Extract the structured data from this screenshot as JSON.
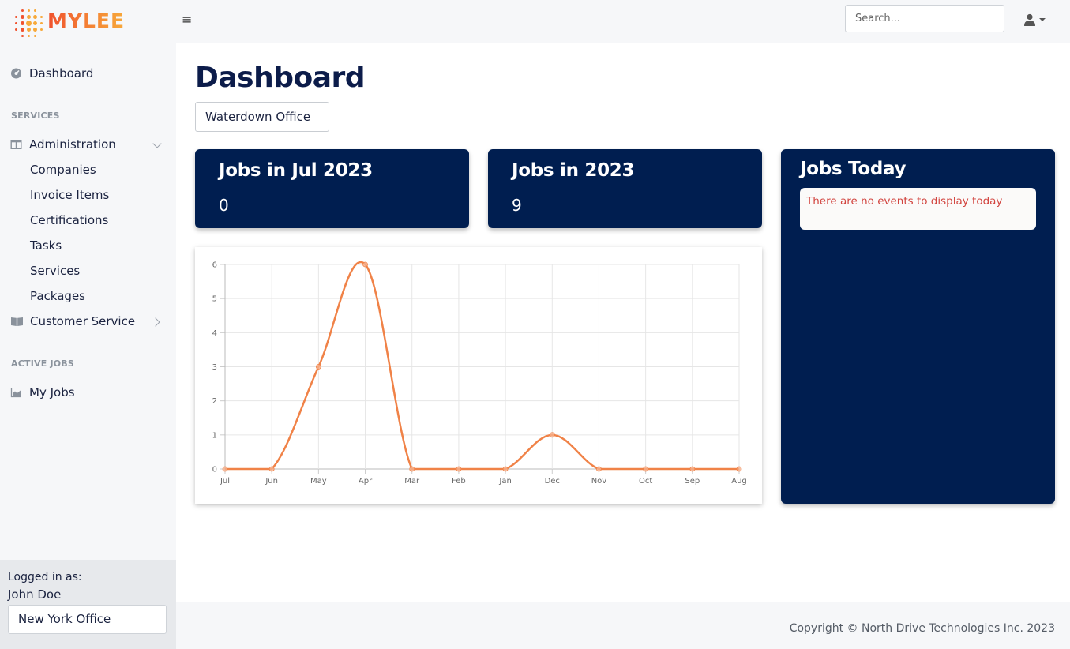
{
  "brand": {
    "name": "MYLEE",
    "colors": {
      "primary": "#f0522e",
      "secondary": "#f7a93a"
    }
  },
  "header": {
    "menu_icon": "≡",
    "search": {
      "placeholder": "Search...",
      "value": ""
    },
    "user_icon": "user-icon"
  },
  "sidebar": {
    "dashboard": "Dashboard",
    "sections": {
      "services": "SERVICES",
      "active_jobs": "ACTIVE JOBS"
    },
    "administration": {
      "label": "Administration",
      "items": [
        "Companies",
        "Invoice Items",
        "Certifications",
        "Tasks",
        "Services",
        "Packages"
      ]
    },
    "customer_service": "Customer Service",
    "my_jobs": "My Jobs",
    "footer": {
      "logged_in_label": "Logged in as:",
      "user": "John Doe",
      "office": "New York Office"
    }
  },
  "main": {
    "title": "Dashboard",
    "office_button": "Waterdown Office",
    "cards": [
      {
        "title": "Jobs in Jul 2023",
        "value": "0"
      },
      {
        "title": "Jobs in 2023",
        "value": "9"
      }
    ],
    "today": {
      "title": "Jobs Today",
      "message": "There are no events to display today"
    },
    "card_color": "#001e50"
  },
  "chart_data": {
    "type": "line",
    "categories": [
      "Jul",
      "Jun",
      "May",
      "Apr",
      "Mar",
      "Feb",
      "Jan",
      "Dec",
      "Nov",
      "Oct",
      "Sep",
      "Aug"
    ],
    "values": [
      0,
      0,
      3,
      6,
      0,
      0,
      0,
      1,
      0,
      0,
      0,
      0
    ],
    "ylim": [
      0,
      6
    ],
    "yticks": [
      0,
      1,
      2,
      3,
      4,
      5,
      6
    ],
    "grid": true,
    "color": "#f08247"
  },
  "footer": {
    "copyright": "Copyright © North Drive Technologies Inc. 2023"
  }
}
